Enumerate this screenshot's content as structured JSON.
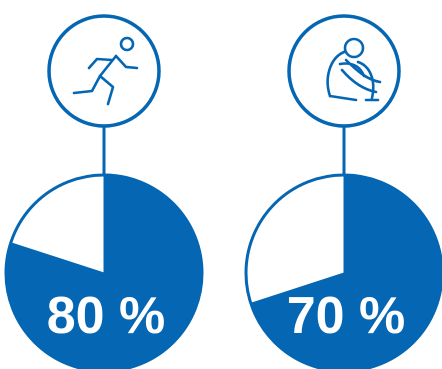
{
  "chart_data": [
    {
      "type": "pie",
      "icon": "running-person-icon",
      "value": 80,
      "label": "80 %",
      "unit": "%"
    },
    {
      "type": "pie",
      "icon": "sitting-hugging-knees-person-icon",
      "value": 70,
      "label": "70 %",
      "unit": "%"
    }
  ],
  "colors": {
    "accent": "#0567b3",
    "background": "#ffffff"
  }
}
